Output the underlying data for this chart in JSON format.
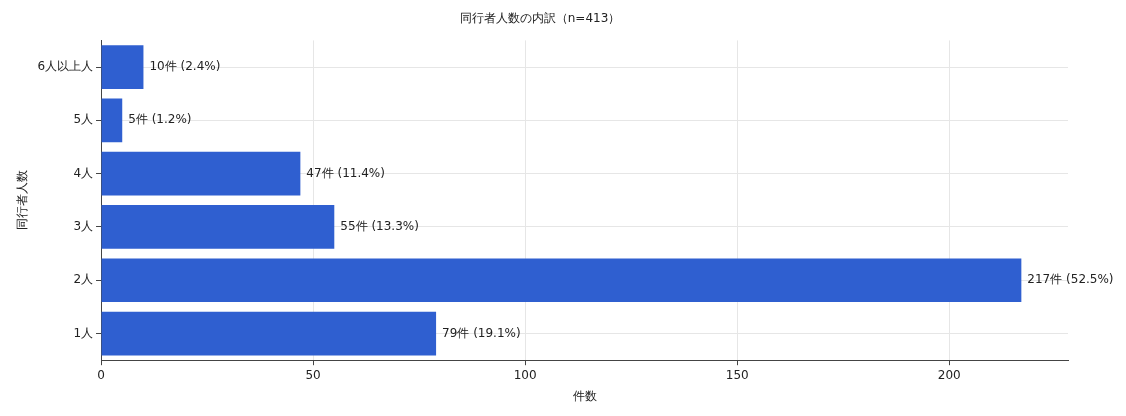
{
  "chart_data": {
    "type": "bar",
    "orientation": "horizontal",
    "title": "同行者人数の内訳（n=413）",
    "xlabel": "件数",
    "ylabel": "同行者人数",
    "categories": [
      "6人以上人",
      "5人",
      "4人",
      "3人",
      "2人",
      "1人"
    ],
    "values": [
      10,
      5,
      47,
      55,
      217,
      79
    ],
    "value_labels": [
      "10件 (2.4%)",
      "5件 (1.2%)",
      "47件 (11.4%)",
      "55件 (13.3%)",
      "217件 (52.5%)",
      "79件 (19.1%)"
    ],
    "color": "#2f5fd0",
    "xlim": [
      0,
      228
    ],
    "xticks": [
      0,
      50,
      100,
      150,
      200
    ],
    "grid": true
  }
}
